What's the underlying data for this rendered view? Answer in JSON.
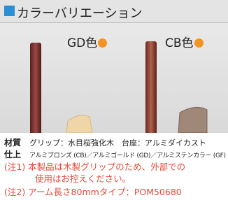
{
  "header": {
    "title": "カラーバリエーション"
  },
  "variants": [
    {
      "label": "GD色"
    },
    {
      "label": "CB色"
    }
  ],
  "specs": [
    {
      "label": "材質",
      "text": "グリップ：水目桜強化木　台座：アルミダイカスト"
    },
    {
      "label": "仕上",
      "text": "アルミブロンズ (CB)／アルミゴールド (GD)／アルミステンカラー (GF)"
    }
  ],
  "notes": [
    {
      "lines": [
        "(注1) 本製品は木製グリップのため、外部での",
        "使用はお控えください。"
      ]
    },
    {
      "lines": [
        "(注2) アーム長さ80mmタイプ：POM50680"
      ]
    }
  ]
}
